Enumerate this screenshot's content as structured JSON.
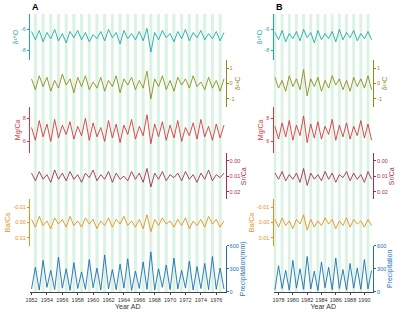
{
  "chart_data": [
    {
      "type": "line",
      "title": "A",
      "xlabel": "Year AD",
      "grid": false,
      "x": [
        1952,
        1952.5,
        1953,
        1953.5,
        1954,
        1954.5,
        1955,
        1955.5,
        1956,
        1956.5,
        1957,
        1957.5,
        1958,
        1958.5,
        1959,
        1959.5,
        1960,
        1960.5,
        1961,
        1961.5,
        1962,
        1962.5,
        1963,
        1963.5,
        1964,
        1964.5,
        1965,
        1965.5,
        1966,
        1966.5,
        1967,
        1967.5,
        1968,
        1968.5,
        1969,
        1969.5,
        1970,
        1970.5,
        1971,
        1971.5,
        1972,
        1972.5,
        1973,
        1973.5,
        1974,
        1974.5,
        1975,
        1975.5,
        1976,
        1976.5,
        1977
      ],
      "xlim": [
        1951.8,
        1977.2
      ],
      "xticks": [
        1952,
        1954,
        1956,
        1958,
        1960,
        1962,
        1964,
        1966,
        1968,
        1970,
        1972,
        1974,
        1976
      ],
      "bands": [
        [
          1952.3,
          1952.7
        ],
        [
          1953.3,
          1953.7
        ],
        [
          1954.3,
          1954.7
        ],
        [
          1955.3,
          1955.7
        ],
        [
          1956.3,
          1956.7
        ],
        [
          1957.3,
          1957.7
        ],
        [
          1958.3,
          1958.7
        ],
        [
          1959.3,
          1959.7
        ],
        [
          1960.3,
          1960.7
        ],
        [
          1961.3,
          1961.7
        ],
        [
          1962.3,
          1962.7
        ],
        [
          1963.3,
          1963.7
        ],
        [
          1964.3,
          1964.7
        ],
        [
          1965.3,
          1965.7
        ],
        [
          1966.3,
          1966.7
        ],
        [
          1967.3,
          1967.7
        ],
        [
          1968.3,
          1968.7
        ],
        [
          1969.3,
          1969.7
        ],
        [
          1970.3,
          1970.7
        ],
        [
          1971.3,
          1971.7
        ],
        [
          1972.3,
          1972.7
        ],
        [
          1973.3,
          1973.7
        ],
        [
          1974.3,
          1974.7
        ],
        [
          1975.3,
          1975.7
        ],
        [
          1976.3,
          1976.7
        ]
      ],
      "series": [
        {
          "name": "δ¹⁸O",
          "color": "#1fa8b0",
          "ylim": [
            -9,
            -4.5
          ],
          "yticks": [
            -8,
            -6
          ],
          "values": [
            -6.2,
            -7.0,
            -6.1,
            -7.2,
            -6.3,
            -6.9,
            -6.0,
            -7.1,
            -6.4,
            -7.3,
            -6.2,
            -6.8,
            -6.1,
            -7.0,
            -6.3,
            -7.2,
            -6.5,
            -6.9,
            -6.2,
            -7.1,
            -6.0,
            -6.8,
            -6.3,
            -7.4,
            -6.1,
            -6.9,
            -6.4,
            -7.0,
            -6.2,
            -7.1,
            -5.9,
            -8.2,
            -6.3,
            -7.0,
            -6.1,
            -6.8,
            -6.4,
            -7.2,
            -6.2,
            -6.9,
            -6.0,
            -7.1,
            -6.3,
            -6.8,
            -6.1,
            -7.0,
            -6.4,
            -6.9,
            -6.2,
            -7.1,
            -6.3
          ]
        },
        {
          "name": "δ¹³C",
          "color": "#8c8c1e",
          "ylim": [
            -1.5,
            1.5
          ],
          "yticks": [
            -1,
            0,
            1
          ],
          "values": [
            0.3,
            -0.4,
            0.5,
            -0.2,
            0.4,
            -0.5,
            0.2,
            -0.3,
            0.6,
            -0.1,
            0.3,
            -0.6,
            0.4,
            -0.2,
            0.5,
            -0.4,
            0.1,
            -0.3,
            0.4,
            -0.5,
            0.2,
            -0.2,
            0.5,
            -0.6,
            0.3,
            -0.1,
            0.4,
            -0.4,
            0.2,
            -0.3,
            0.8,
            -1.0,
            0.3,
            -0.2,
            0.5,
            -0.4,
            0.2,
            -0.5,
            0.4,
            -0.1,
            0.3,
            -0.3,
            0.5,
            -0.2,
            0.1,
            -0.4,
            0.4,
            -0.3,
            0.2,
            -0.5,
            0.3
          ]
        },
        {
          "name": "Mg/Ca",
          "color": "#d9363e",
          "ylim": [
            5,
            9
          ],
          "yticks": [
            6,
            8
          ],
          "values": [
            7.2,
            6.1,
            7.8,
            6.4,
            7.5,
            6.0,
            7.9,
            6.3,
            7.4,
            6.6,
            7.7,
            6.2,
            7.3,
            6.5,
            8.0,
            6.1,
            7.6,
            6.4,
            7.2,
            6.0,
            7.8,
            6.3,
            7.5,
            5.9,
            7.4,
            6.6,
            7.9,
            6.2,
            7.3,
            6.5,
            8.3,
            5.8,
            7.5,
            6.4,
            7.7,
            6.1,
            7.4,
            6.3,
            7.8,
            6.0,
            7.2,
            6.5,
            7.6,
            6.2,
            7.9,
            6.4,
            7.3,
            6.1,
            7.5,
            6.3,
            7.4
          ]
        },
        {
          "name": "Sr/Ca",
          "color": "#a3304c",
          "ylim": [
            0.025,
            -0.005
          ],
          "yticks": [
            {
              "value": 0,
              "label": "0.00"
            },
            0.01,
            0.02
          ],
          "values": [
            0.008,
            0.013,
            0.007,
            0.012,
            0.009,
            0.014,
            0.006,
            0.012,
            0.008,
            0.013,
            0.007,
            0.012,
            0.009,
            0.014,
            0.008,
            0.011,
            0.006,
            0.013,
            0.009,
            0.012,
            0.007,
            0.014,
            0.008,
            0.012,
            0.01,
            0.013,
            0.007,
            0.012,
            0.008,
            0.014,
            0.005,
            0.017,
            0.008,
            0.012,
            0.007,
            0.013,
            0.009,
            0.011,
            0.008,
            0.013,
            0.007,
            0.012,
            0.009,
            0.014,
            0.008,
            0.012,
            0.006,
            0.013,
            0.009,
            0.011,
            0.008
          ]
        },
        {
          "name": "Ba/Ca",
          "color": "#e8901a",
          "ylim": [
            0.015,
            -0.015
          ],
          "yticks": [
            -0.01,
            {
              "value": 0,
              "label": "0.00"
            },
            0.01
          ],
          "values": [
            -0.002,
            0.003,
            -0.004,
            0.002,
            -0.001,
            0.004,
            -0.003,
            0.001,
            -0.002,
            0.003,
            -0.004,
            0.002,
            -0.001,
            0.003,
            -0.003,
            0.001,
            -0.002,
            0.004,
            -0.001,
            0.002,
            -0.003,
            0.003,
            -0.002,
            0.001,
            -0.004,
            0.002,
            -0.001,
            0.003,
            -0.002,
            0.004,
            -0.005,
            0.006,
            -0.002,
            0.002,
            -0.003,
            0.001,
            -0.001,
            0.003,
            -0.002,
            0.002,
            -0.003,
            0.004,
            -0.001,
            0.002,
            -0.002,
            0.003,
            -0.004,
            0.001,
            -0.002,
            0.003,
            -0.001
          ]
        },
        {
          "name": "Precipitation",
          "ylabel": "Precipitation(mm)",
          "color": "#1a6fb5",
          "ylim": [
            0,
            600
          ],
          "yticks": [
            0,
            300,
            600
          ],
          "values": [
            40,
            320,
            25,
            410,
            60,
            280,
            30,
            450,
            50,
            300,
            20,
            380,
            45,
            260,
            35,
            420,
            55,
            310,
            25,
            480,
            40,
            290,
            30,
            360,
            50,
            430,
            20,
            270,
            45,
            390,
            35,
            520,
            25,
            300,
            60,
            350,
            30,
            440,
            40,
            280,
            50,
            400,
            25,
            330,
            45,
            370,
            30,
            460,
            35,
            310,
            40
          ]
        }
      ]
    },
    {
      "type": "line",
      "title": "B",
      "xlabel": "Year AD",
      "grid": false,
      "x": [
        1977.5,
        1978,
        1978.5,
        1979,
        1979.5,
        1980,
        1980.5,
        1981,
        1981.5,
        1982,
        1982.5,
        1983,
        1983.5,
        1984,
        1984.5,
        1985,
        1985.5,
        1986,
        1986.5,
        1987,
        1987.5,
        1988,
        1988.5,
        1989,
        1989.5,
        1990,
        1990.5,
        1991
      ],
      "xlim": [
        1977.3,
        1991.2
      ],
      "xticks": [
        1978,
        1980,
        1982,
        1984,
        1986,
        1988,
        1990
      ],
      "bands": [
        [
          1977.3,
          1977.7
        ],
        [
          1978.3,
          1978.7
        ],
        [
          1979.3,
          1979.7
        ],
        [
          1980.3,
          1980.7
        ],
        [
          1981.3,
          1981.7
        ],
        [
          1982.3,
          1982.7
        ],
        [
          1983.3,
          1983.7
        ],
        [
          1984.3,
          1984.7
        ],
        [
          1985.3,
          1985.7
        ],
        [
          1986.3,
          1986.7
        ],
        [
          1987.3,
          1987.7
        ],
        [
          1988.3,
          1988.7
        ],
        [
          1989.3,
          1989.7
        ],
        [
          1990.3,
          1990.7
        ]
      ],
      "series": [
        {
          "name": "δ¹⁸O",
          "color": "#1fa8b0",
          "ylim": [
            -9,
            -4.5
          ],
          "yticks": [
            -8,
            -6
          ],
          "values": [
            -6.3,
            -7.0,
            -6.1,
            -7.2,
            -6.4,
            -6.9,
            -6.2,
            -7.1,
            -6.0,
            -6.8,
            -6.3,
            -7.3,
            -6.1,
            -7.0,
            -6.4,
            -6.9,
            -6.2,
            -7.2,
            -6.0,
            -7.0,
            -6.3,
            -6.8,
            -6.1,
            -7.1,
            -6.4,
            -6.9,
            -6.2,
            -7.0
          ]
        },
        {
          "name": "δ¹³C",
          "color": "#8c8c1e",
          "ylim": [
            -1.5,
            1.5
          ],
          "yticks": [
            -1,
            0,
            1
          ],
          "values": [
            0.4,
            -0.3,
            0.2,
            -0.5,
            0.5,
            -0.2,
            0.3,
            -0.4,
            0.9,
            -0.8,
            0.3,
            -0.2,
            0.4,
            -0.5,
            0.2,
            -0.3,
            0.5,
            -0.1,
            0.3,
            -0.4,
            0.2,
            -0.5,
            0.4,
            -0.2,
            0.3,
            -0.3,
            0.5,
            -0.4
          ]
        },
        {
          "name": "Mg/Ca",
          "color": "#d9363e",
          "ylim": [
            5,
            9
          ],
          "yticks": [
            6,
            8
          ],
          "values": [
            7.3,
            6.2,
            7.6,
            6.4,
            7.8,
            6.1,
            7.4,
            6.5,
            8.2,
            5.9,
            7.5,
            6.3,
            7.7,
            6.2,
            7.3,
            6.6,
            7.9,
            6.1,
            7.4,
            6.4,
            7.6,
            6.2,
            7.3,
            6.5,
            7.8,
            6.3,
            7.5,
            6.1
          ]
        },
        {
          "name": "Sr/Ca",
          "color": "#a3304c",
          "ylim": [
            0.025,
            -0.005
          ],
          "yticks": [
            {
              "value": 0,
              "label": "0.00"
            },
            0.01,
            0.02
          ],
          "values": [
            0.008,
            0.012,
            0.007,
            0.013,
            0.009,
            0.012,
            0.008,
            0.014,
            0.005,
            0.016,
            0.008,
            0.012,
            0.009,
            0.013,
            0.007,
            0.012,
            0.008,
            0.014,
            0.009,
            0.011,
            0.007,
            0.013,
            0.008,
            0.012,
            0.009,
            0.014,
            0.007,
            0.012
          ]
        },
        {
          "name": "Ba/Ca",
          "color": "#e8901a",
          "ylim": [
            0.015,
            -0.015
          ],
          "yticks": [
            -0.01,
            {
              "value": 0,
              "label": "0.00"
            },
            0.01
          ],
          "values": [
            -0.002,
            0.003,
            -0.003,
            0.002,
            -0.001,
            0.004,
            -0.002,
            0.001,
            -0.005,
            0.005,
            -0.002,
            0.003,
            -0.001,
            0.002,
            -0.003,
            0.001,
            -0.002,
            0.004,
            -0.001,
            0.002,
            -0.003,
            0.003,
            -0.002,
            0.001,
            -0.001,
            0.003,
            -0.002,
            0.002
          ]
        },
        {
          "name": "Precipitation",
          "color": "#1a6fb5",
          "ylim": [
            0,
            600
          ],
          "yticks": [
            0,
            300,
            600
          ],
          "values": [
            30,
            340,
            45,
            280,
            25,
            410,
            50,
            300,
            35,
            460,
            40,
            270,
            20,
            390,
            55,
            320,
            30,
            440,
            45,
            290,
            25,
            370,
            50,
            310,
            35,
            420,
            40,
            280
          ]
        }
      ]
    }
  ]
}
